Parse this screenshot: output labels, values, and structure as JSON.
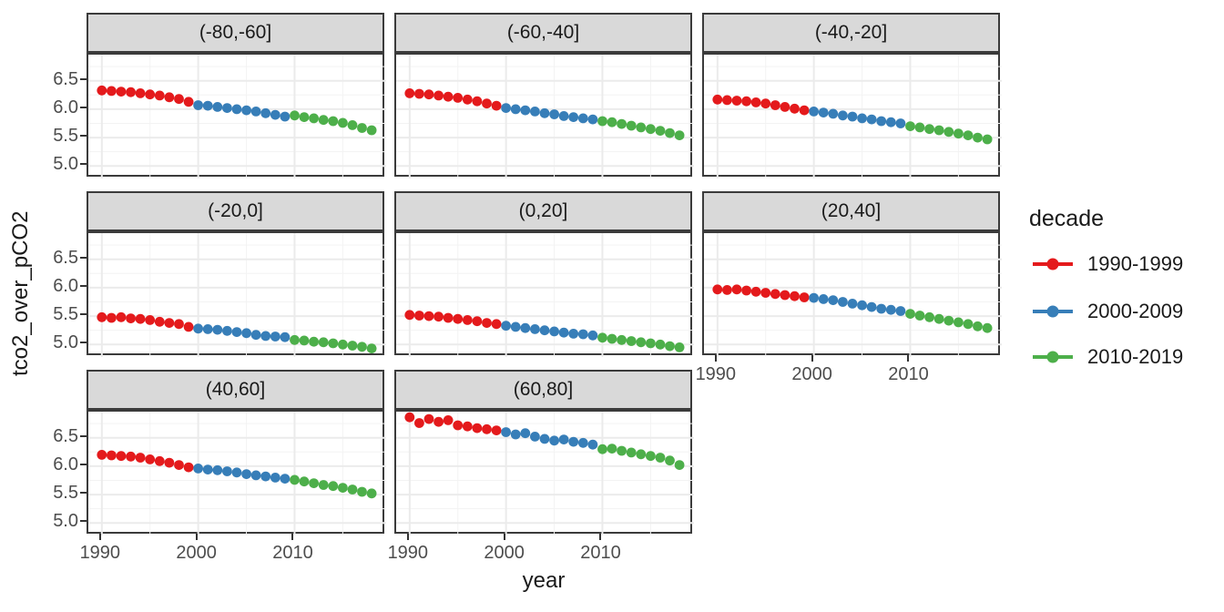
{
  "chart_data": {
    "type": "scatter",
    "title": "",
    "xlabel": "year",
    "ylabel": "tco2_over_pCO2",
    "grid": true,
    "legend_position": "right",
    "x_ticks": [
      "1990",
      "2000",
      "2010"
    ],
    "x_tick_values": [
      1990,
      2000,
      2010
    ],
    "y_ticks": [
      "6.5",
      "6.0",
      "5.5",
      "5.0"
    ],
    "y_tick_values": [
      6.5,
      6.0,
      5.5,
      5.0
    ],
    "x_minor": [
      1995,
      2005,
      2015
    ],
    "y_minor": [
      5.25,
      5.75,
      6.25,
      6.75
    ],
    "xlim": [
      1988.6,
      2019.5
    ],
    "ylim": [
      4.78,
      6.96
    ],
    "x": [
      1990,
      1991,
      1992,
      1993,
      1994,
      1995,
      1996,
      1997,
      1998,
      1999,
      2000,
      2001,
      2002,
      2003,
      2004,
      2005,
      2006,
      2007,
      2008,
      2009,
      2010,
      2011,
      2012,
      2013,
      2014,
      2015,
      2016,
      2017,
      2018
    ],
    "decade_breaks": [
      2000,
      2010
    ],
    "legend": {
      "title": "decade",
      "entries": [
        {
          "label": "1990-1999",
          "color": "#E41A1C"
        },
        {
          "label": "2000-2009",
          "color": "#377EB8"
        },
        {
          "label": "2010-2019",
          "color": "#4DAF4A"
        }
      ]
    },
    "facets": [
      {
        "label": "(-80,-60]",
        "values": [
          6.33,
          6.32,
          6.31,
          6.3,
          6.28,
          6.26,
          6.24,
          6.21,
          6.18,
          6.13,
          6.07,
          6.06,
          6.04,
          6.02,
          6.0,
          5.98,
          5.96,
          5.93,
          5.9,
          5.87,
          5.89,
          5.86,
          5.84,
          5.81,
          5.79,
          5.76,
          5.72,
          5.67,
          5.63
        ]
      },
      {
        "label": "(-60,-40]",
        "values": [
          6.28,
          6.27,
          6.26,
          6.24,
          6.22,
          6.2,
          6.17,
          6.14,
          6.1,
          6.06,
          6.02,
          6.0,
          5.98,
          5.96,
          5.93,
          5.91,
          5.88,
          5.86,
          5.84,
          5.82,
          5.79,
          5.77,
          5.74,
          5.71,
          5.68,
          5.65,
          5.62,
          5.58,
          5.54
        ]
      },
      {
        "label": "(-40,-20]",
        "values": [
          6.17,
          6.16,
          6.15,
          6.14,
          6.12,
          6.1,
          6.07,
          6.04,
          6.01,
          5.98,
          5.96,
          5.94,
          5.92,
          5.89,
          5.87,
          5.84,
          5.82,
          5.79,
          5.77,
          5.75,
          5.7,
          5.68,
          5.65,
          5.63,
          5.6,
          5.57,
          5.54,
          5.5,
          5.47
        ]
      },
      {
        "label": "(-20,0]",
        "values": [
          5.48,
          5.47,
          5.48,
          5.46,
          5.45,
          5.43,
          5.4,
          5.38,
          5.36,
          5.31,
          5.28,
          5.27,
          5.26,
          5.24,
          5.22,
          5.2,
          5.17,
          5.15,
          5.14,
          5.13,
          5.08,
          5.07,
          5.05,
          5.04,
          5.02,
          5.0,
          4.98,
          4.96,
          4.93
        ]
      },
      {
        "label": "(0,20]",
        "values": [
          5.52,
          5.51,
          5.5,
          5.49,
          5.47,
          5.45,
          5.43,
          5.41,
          5.38,
          5.36,
          5.33,
          5.31,
          5.29,
          5.27,
          5.25,
          5.23,
          5.21,
          5.19,
          5.18,
          5.16,
          5.12,
          5.1,
          5.08,
          5.06,
          5.04,
          5.02,
          5.0,
          4.97,
          4.95
        ]
      },
      {
        "label": "(20,40]",
        "values": [
          5.97,
          5.96,
          5.97,
          5.95,
          5.93,
          5.91,
          5.89,
          5.87,
          5.85,
          5.83,
          5.82,
          5.8,
          5.78,
          5.75,
          5.72,
          5.69,
          5.66,
          5.63,
          5.61,
          5.59,
          5.54,
          5.51,
          5.48,
          5.45,
          5.42,
          5.39,
          5.36,
          5.32,
          5.29
        ]
      },
      {
        "label": "(40,60]",
        "values": [
          6.2,
          6.19,
          6.18,
          6.17,
          6.15,
          6.12,
          6.09,
          6.06,
          6.02,
          5.98,
          5.96,
          5.94,
          5.93,
          5.91,
          5.89,
          5.86,
          5.84,
          5.82,
          5.8,
          5.78,
          5.76,
          5.73,
          5.7,
          5.67,
          5.65,
          5.62,
          5.59,
          5.55,
          5.52
        ]
      },
      {
        "label": "(60,80]",
        "values": [
          6.86,
          6.76,
          6.83,
          6.78,
          6.81,
          6.72,
          6.7,
          6.67,
          6.65,
          6.63,
          6.6,
          6.56,
          6.58,
          6.52,
          6.48,
          6.45,
          6.47,
          6.43,
          6.41,
          6.38,
          6.3,
          6.31,
          6.27,
          6.24,
          6.21,
          6.18,
          6.15,
          6.1,
          6.02
        ]
      }
    ]
  },
  "colors": {
    "strip_bg": "#D9D9D9",
    "border": "#3B3B3B",
    "grid_major": "#EBEBEB",
    "grid_minor": "#F3F3F3",
    "tick_label": "#4D4D4D",
    "text": "#1A1A1A",
    "background": "#FFFFFF"
  }
}
